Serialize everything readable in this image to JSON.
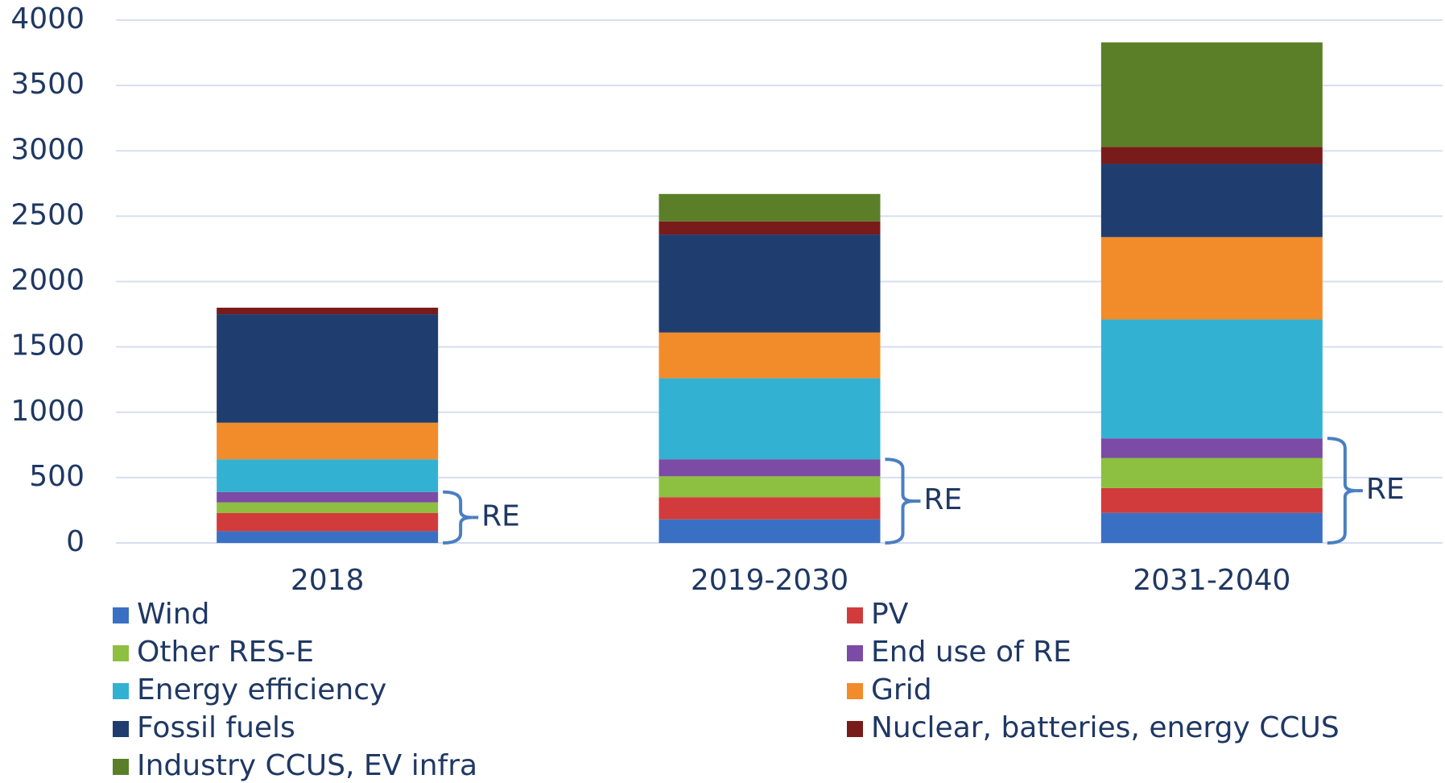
{
  "chart_data": {
    "type": "stacked-bar",
    "categories": [
      "2018",
      "2019-2030",
      "2031-2040"
    ],
    "series": [
      {
        "name": "Wind",
        "color": "#3a70c4",
        "values": [
          90,
          180,
          230
        ]
      },
      {
        "name": "PV",
        "color": "#d13b3b",
        "values": [
          140,
          170,
          190
        ]
      },
      {
        "name": "Other RES-E",
        "color": "#8dbf40",
        "values": [
          80,
          160,
          230
        ]
      },
      {
        "name": "End use of RE",
        "color": "#7b4ba6",
        "values": [
          80,
          130,
          150
        ]
      },
      {
        "name": "Energy efficiency",
        "color": "#33b1d2",
        "values": [
          250,
          620,
          910
        ]
      },
      {
        "name": "Grid",
        "color": "#f28b29",
        "values": [
          280,
          350,
          630
        ]
      },
      {
        "name": "Fossil fuels",
        "color": "#1f3e6f",
        "values": [
          830,
          750,
          560
        ]
      },
      {
        "name": "Nuclear, batteries, energy CCUS",
        "color": "#7a1b1b",
        "values": [
          50,
          100,
          130
        ]
      },
      {
        "name": "Industry CCUS, EV infra",
        "color": "#5b7f28",
        "values": [
          0,
          210,
          800
        ]
      }
    ],
    "annotations": [
      "RE",
      "RE",
      "RE"
    ],
    "ylim": [
      0,
      4000
    ],
    "yticks": [
      0,
      500,
      1000,
      1500,
      2000,
      2500,
      3000,
      3500,
      4000
    ],
    "grid": true
  }
}
